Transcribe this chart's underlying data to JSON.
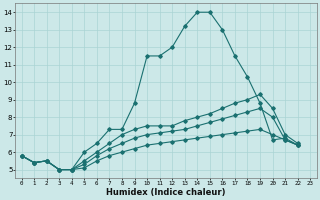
{
  "xlabel": "Humidex (Indice chaleur)",
  "ylabel": "",
  "bg_color": "#cce8e8",
  "line_color": "#1a7070",
  "grid_color": "#aad4d4",
  "xlim": [
    -0.5,
    23.5
  ],
  "ylim": [
    4.5,
    14.5
  ],
  "xticks": [
    0,
    1,
    2,
    3,
    4,
    5,
    6,
    7,
    8,
    9,
    10,
    11,
    12,
    13,
    14,
    15,
    16,
    17,
    18,
    19,
    20,
    21,
    22,
    23
  ],
  "yticks": [
    5,
    6,
    7,
    8,
    9,
    10,
    11,
    12,
    13,
    14
  ],
  "series": [
    {
      "x": [
        0,
        1,
        2,
        3,
        4,
        5,
        6,
        7,
        8,
        9,
        10,
        11,
        12,
        13,
        14,
        15,
        16,
        17,
        18,
        19,
        20,
        21,
        22
      ],
      "y": [
        5.8,
        5.4,
        5.5,
        5.0,
        5.0,
        6.0,
        6.5,
        7.3,
        7.3,
        8.8,
        11.5,
        11.5,
        12.0,
        13.2,
        14.0,
        14.0,
        13.0,
        11.5,
        10.3,
        8.8,
        6.7,
        6.8,
        6.4
      ]
    },
    {
      "x": [
        0,
        1,
        2,
        3,
        4,
        5,
        6,
        7,
        8,
        9,
        10,
        11,
        12,
        13,
        14,
        15,
        16,
        17,
        18,
        19,
        20,
        21,
        22
      ],
      "y": [
        5.8,
        5.4,
        5.5,
        5.0,
        5.0,
        5.5,
        6.0,
        6.5,
        7.0,
        7.3,
        7.5,
        7.5,
        7.5,
        7.8,
        8.0,
        8.2,
        8.5,
        8.8,
        9.0,
        9.3,
        8.5,
        7.0,
        6.5
      ]
    },
    {
      "x": [
        0,
        1,
        2,
        3,
        4,
        5,
        6,
        7,
        8,
        9,
        10,
        11,
        12,
        13,
        14,
        15,
        16,
        17,
        18,
        19,
        20,
        21,
        22
      ],
      "y": [
        5.8,
        5.4,
        5.5,
        5.0,
        5.0,
        5.3,
        5.8,
        6.2,
        6.5,
        6.8,
        7.0,
        7.1,
        7.2,
        7.3,
        7.5,
        7.7,
        7.9,
        8.1,
        8.3,
        8.5,
        8.0,
        6.7,
        6.4
      ]
    },
    {
      "x": [
        0,
        1,
        2,
        3,
        4,
        5,
        6,
        7,
        8,
        9,
        10,
        11,
        12,
        13,
        14,
        15,
        16,
        17,
        18,
        19,
        20,
        21,
        22
      ],
      "y": [
        5.8,
        5.4,
        5.5,
        5.0,
        5.0,
        5.1,
        5.5,
        5.8,
        6.0,
        6.2,
        6.4,
        6.5,
        6.6,
        6.7,
        6.8,
        6.9,
        7.0,
        7.1,
        7.2,
        7.3,
        7.0,
        6.7,
        6.4
      ]
    }
  ]
}
